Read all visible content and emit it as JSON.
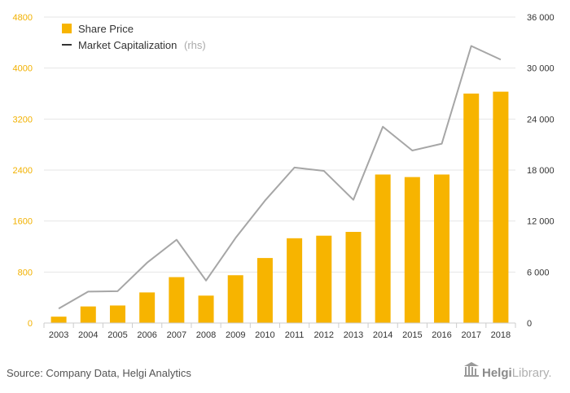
{
  "colors": {
    "bar": "#f7b400",
    "line": "#a6a6a6",
    "grid": "#e6e6e6",
    "left_axis_text": "#f2b100"
  },
  "footer": {
    "source": "Source: Company Data, Helgi Analytics",
    "brand_bold": "Helgi",
    "brand_light": "Library."
  },
  "chart_data": {
    "type": "bar",
    "categories": [
      "2003",
      "2004",
      "2005",
      "2006",
      "2007",
      "2008",
      "2009",
      "2010",
      "2011",
      "2012",
      "2013",
      "2014",
      "2015",
      "2016",
      "2017",
      "2018"
    ],
    "series": [
      {
        "name": "Share Price",
        "type": "bar",
        "axis": "left",
        "values": [
          100,
          260,
          275,
          480,
          720,
          430,
          750,
          1020,
          1330,
          1370,
          1430,
          2330,
          2290,
          2330,
          3600,
          3630
        ]
      },
      {
        "name": "Market Capitalization",
        "name_suffix": "(rhs)",
        "type": "line",
        "axis": "right",
        "values": [
          1700,
          3700,
          3750,
          7100,
          9800,
          5000,
          10000,
          14400,
          18300,
          17900,
          14500,
          23100,
          20300,
          21100,
          32600,
          31000
        ]
      }
    ],
    "left_axis": {
      "ticks": [
        "0",
        "800",
        "1600",
        "2400",
        "3200",
        "4000",
        "4800"
      ],
      "range": [
        0,
        4800
      ]
    },
    "right_axis": {
      "ticks": [
        "0",
        "6 000",
        "12 000",
        "18 000",
        "24 000",
        "30 000",
        "36 000"
      ],
      "range": [
        0,
        36000
      ]
    },
    "grid": true,
    "legend_position": "top-left"
  }
}
